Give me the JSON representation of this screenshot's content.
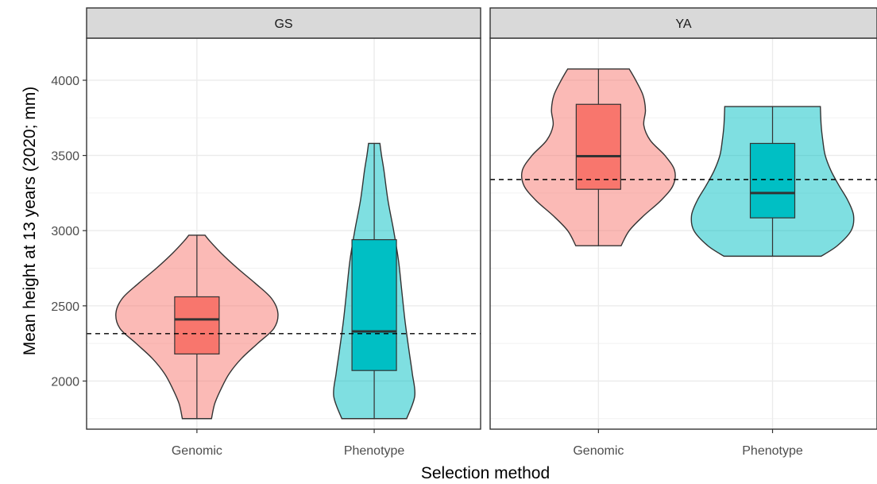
{
  "chart_data": {
    "type": "violin",
    "xlabel": "Selection method",
    "ylabel": "Mean height at 13 years (2020; mm)",
    "ylim": [
      1680,
      4280
    ],
    "yticks": [
      2000,
      2500,
      3000,
      3500,
      4000
    ],
    "grid": true,
    "legend": "none",
    "categories": [
      "Genomic",
      "Phenotype"
    ],
    "colors": {
      "Genomic": "#F8766D",
      "Phenotype": "#00BFC4"
    },
    "facets": [
      {
        "label": "GS",
        "hline": 2315,
        "groups": [
          {
            "category": "Genomic",
            "box": {
              "q1": 2180,
              "median": 2410,
              "q3": 2560
            },
            "whisker": [
              1750,
              2970
            ],
            "violin": [
              [
                1750,
                0.18
              ],
              [
                1850,
                0.22
              ],
              [
                1950,
                0.3
              ],
              [
                2050,
                0.4
              ],
              [
                2150,
                0.55
              ],
              [
                2250,
                0.75
              ],
              [
                2350,
                0.95
              ],
              [
                2450,
                1.0
              ],
              [
                2550,
                0.92
              ],
              [
                2650,
                0.72
              ],
              [
                2750,
                0.5
              ],
              [
                2850,
                0.3
              ],
              [
                2930,
                0.16
              ],
              [
                2970,
                0.1
              ]
            ]
          },
          {
            "category": "Phenotype",
            "box": {
              "q1": 2070,
              "median": 2330,
              "q3": 2940
            },
            "whisker": [
              1750,
              3580
            ],
            "violin": [
              [
                1750,
                0.4
              ],
              [
                1900,
                0.5
              ],
              [
                2050,
                0.47
              ],
              [
                2200,
                0.43
              ],
              [
                2400,
                0.38
              ],
              [
                2600,
                0.34
              ],
              [
                2800,
                0.3
              ],
              [
                3000,
                0.24
              ],
              [
                3200,
                0.17
              ],
              [
                3400,
                0.12
              ],
              [
                3500,
                0.09
              ],
              [
                3580,
                0.07
              ]
            ]
          }
        ]
      },
      {
        "label": "YA",
        "hline": 3340,
        "groups": [
          {
            "category": "Genomic",
            "box": {
              "q1": 3275,
              "median": 3495,
              "q3": 3840
            },
            "whisker": [
              2900,
              4075
            ],
            "violin": [
              [
                2900,
                0.28
              ],
              [
                3000,
                0.38
              ],
              [
                3100,
                0.56
              ],
              [
                3200,
                0.77
              ],
              [
                3300,
                0.92
              ],
              [
                3400,
                0.94
              ],
              [
                3500,
                0.82
              ],
              [
                3600,
                0.64
              ],
              [
                3700,
                0.56
              ],
              [
                3800,
                0.58
              ],
              [
                3900,
                0.55
              ],
              [
                4000,
                0.46
              ],
              [
                4075,
                0.38
              ]
            ]
          },
          {
            "category": "Phenotype",
            "box": {
              "q1": 3085,
              "median": 3250,
              "q3": 3580
            },
            "whisker": [
              2830,
              3825
            ],
            "violin": [
              [
                2830,
                0.6
              ],
              [
                2900,
                0.8
              ],
              [
                3000,
                0.97
              ],
              [
                3100,
                1.0
              ],
              [
                3200,
                0.93
              ],
              [
                3300,
                0.82
              ],
              [
                3400,
                0.72
              ],
              [
                3500,
                0.65
              ],
              [
                3600,
                0.62
              ],
              [
                3700,
                0.6
              ],
              [
                3825,
                0.59
              ]
            ]
          }
        ]
      }
    ]
  }
}
